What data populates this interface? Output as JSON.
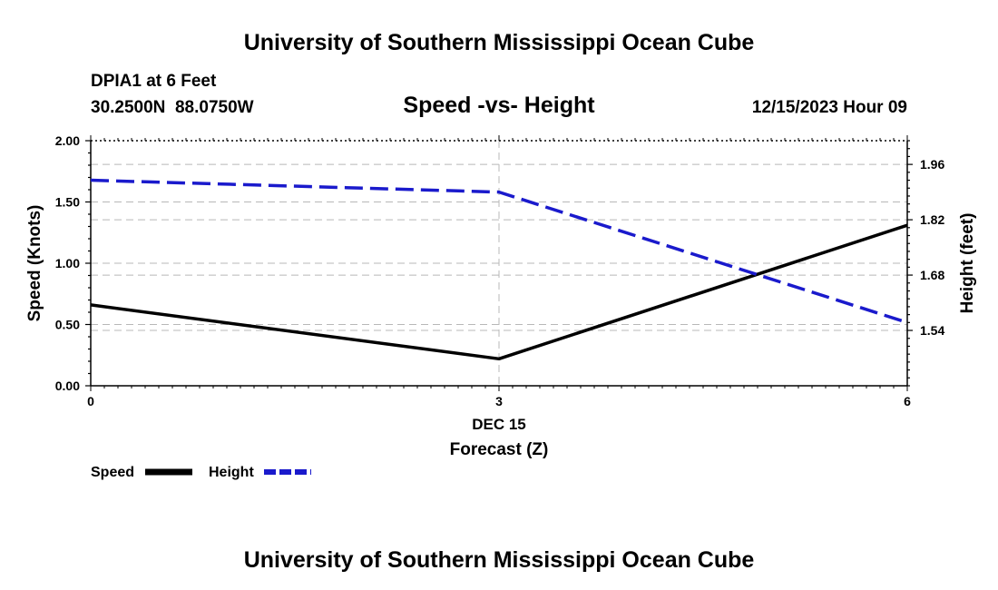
{
  "header": {
    "title": "University of Southern Mississippi Ocean Cube",
    "station": "DPIA1 at 6 Feet",
    "coords": "30.2500N  88.0750W",
    "datetime": "12/15/2023 Hour 09"
  },
  "footer": {
    "title": "University of Southern Mississippi Ocean Cube"
  },
  "colors": {
    "speed": "#000000",
    "height": "#1a1acc",
    "grid": "#b8b8b8"
  },
  "chart_data": {
    "type": "line",
    "title": "Speed -vs- Height",
    "x": [
      0,
      3,
      6
    ],
    "x_tick_labels": [
      "0",
      "3",
      "6"
    ],
    "xlim": [
      0,
      6
    ],
    "x_date_label": "DEC 15",
    "xlabel": "Forecast (Z)",
    "ylabel_left": "Speed (Knots)",
    "ylim_left": [
      0,
      2
    ],
    "y_ticks_left": [
      0,
      0.5,
      1.0,
      1.5,
      2.0
    ],
    "y_tick_labels_left": [
      "0.00",
      "0.50",
      "1.00",
      "1.50",
      "2.00"
    ],
    "ylabel_right": "Height (feet)",
    "ylim_right": [
      1.4,
      2.02
    ],
    "y_ticks_right": [
      1.54,
      1.68,
      1.82,
      1.96
    ],
    "y_tick_labels_right": [
      "1.54",
      "1.68",
      "1.82",
      "1.96"
    ],
    "grid": true,
    "series": [
      {
        "name": "Speed",
        "axis": "left",
        "style": "solid",
        "values": [
          0.66,
          0.22,
          1.31
        ]
      },
      {
        "name": "Height",
        "axis": "right",
        "style": "dashed",
        "values": [
          1.92,
          1.89,
          1.56
        ]
      }
    ],
    "legend": [
      "Speed",
      "Height"
    ],
    "legend_position": "bottom-left"
  }
}
